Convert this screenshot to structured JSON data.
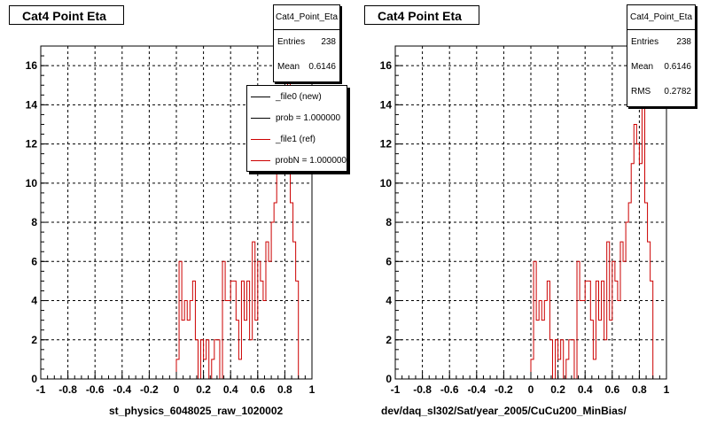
{
  "chart_data": [
    {
      "type": "histogram",
      "title": "Cat4 Point Eta",
      "xlabel": "st_physics_6048025_raw_1020002",
      "ylabel": "",
      "xlim": [
        -1,
        1
      ],
      "ylim": [
        0,
        17
      ],
      "grid": true,
      "x_ticks": [
        "-1",
        "-0.8",
        "-0.6",
        "-0.4",
        "-0.2",
        "0",
        "0.2",
        "0.4",
        "0.6",
        "0.8",
        "1"
      ],
      "y_ticks": [
        "0",
        "2",
        "4",
        "6",
        "8",
        "10",
        "12",
        "14",
        "16"
      ],
      "stats": {
        "title": "Cat4_Point_Eta",
        "entries_label": "Entries",
        "entries": "238",
        "mean_label": "Mean",
        "mean": "0.6146"
      },
      "legend": {
        "placement": "top-right",
        "entries": [
          {
            "label": "_file0 (new)",
            "color": "#000000"
          },
          {
            "label": "prob = 1.000000",
            "color": "#000000"
          },
          {
            "label": "_file1 (ref)",
            "color": "#cc0000"
          },
          {
            "label": "probN = 1.000000",
            "color": "#cc0000"
          }
        ]
      },
      "series": [
        {
          "color": "#cc0000",
          "bin_edges": [
            -1,
            0,
            0.02,
            0.04,
            0.06,
            0.08,
            0.1,
            0.12,
            0.14,
            0.16,
            0.18,
            0.2,
            0.22,
            0.24,
            0.26,
            0.28,
            0.3,
            0.32,
            0.34,
            0.36,
            0.38,
            0.4,
            0.42,
            0.44,
            0.46,
            0.48,
            0.5,
            0.52,
            0.54,
            0.56,
            0.58,
            0.6,
            0.62,
            0.64,
            0.66,
            0.68,
            0.7,
            0.72,
            0.74,
            0.76,
            0.78,
            0.8,
            0.82,
            0.84,
            0.86,
            0.88,
            0.9,
            0.92,
            0.94,
            0.96,
            0.98,
            1.0
          ],
          "values": [
            0,
            1,
            6,
            3,
            4,
            3,
            4,
            5,
            2,
            0,
            2,
            1,
            2,
            0,
            1,
            2,
            2,
            0,
            6,
            4,
            4,
            5,
            5,
            3,
            1,
            5,
            3,
            5,
            2,
            7,
            3,
            6,
            5,
            4,
            7,
            6,
            8,
            9,
            11,
            13,
            12,
            11,
            16,
            9,
            7,
            5,
            0,
            0,
            0,
            0,
            0
          ]
        }
      ]
    },
    {
      "type": "histogram",
      "title": "Cat4 Point Eta",
      "xlabel": "dev/daq_sl302/Sat/year_2005/CuCu200_MinBias/",
      "ylabel": "",
      "xlim": [
        -1,
        1
      ],
      "ylim": [
        0,
        17
      ],
      "grid": true,
      "x_ticks": [
        "-1",
        "-0.8",
        "-0.6",
        "-0.4",
        "-0.2",
        "0",
        "0.2",
        "0.4",
        "0.6",
        "0.8",
        "1"
      ],
      "y_ticks": [
        "0",
        "2",
        "4",
        "6",
        "8",
        "10",
        "12",
        "14",
        "16"
      ],
      "stats": {
        "title": "Cat4_Point_Eta",
        "entries_label": "Entries",
        "entries": "238",
        "mean_label": "Mean",
        "mean": "0.6146",
        "rms_label": "RMS",
        "rms": "0.2782"
      },
      "series": [
        {
          "color": "#cc0000",
          "bin_edges": [
            -1,
            0,
            0.02,
            0.04,
            0.06,
            0.08,
            0.1,
            0.12,
            0.14,
            0.16,
            0.18,
            0.2,
            0.22,
            0.24,
            0.26,
            0.28,
            0.3,
            0.32,
            0.34,
            0.36,
            0.38,
            0.4,
            0.42,
            0.44,
            0.46,
            0.48,
            0.5,
            0.52,
            0.54,
            0.56,
            0.58,
            0.6,
            0.62,
            0.64,
            0.66,
            0.68,
            0.7,
            0.72,
            0.74,
            0.76,
            0.78,
            0.8,
            0.82,
            0.84,
            0.86,
            0.88,
            0.9,
            0.92,
            0.94,
            0.96,
            0.98,
            1.0
          ],
          "values": [
            0,
            1,
            6,
            3,
            4,
            3,
            4,
            5,
            2,
            0,
            2,
            1,
            2,
            0,
            1,
            2,
            2,
            0,
            6,
            4,
            4,
            5,
            5,
            3,
            1,
            5,
            3,
            5,
            2,
            7,
            3,
            6,
            5,
            4,
            7,
            6,
            8,
            9,
            11,
            13,
            12,
            11,
            16,
            9,
            7,
            5,
            0,
            0,
            0,
            0,
            0
          ]
        }
      ]
    }
  ]
}
